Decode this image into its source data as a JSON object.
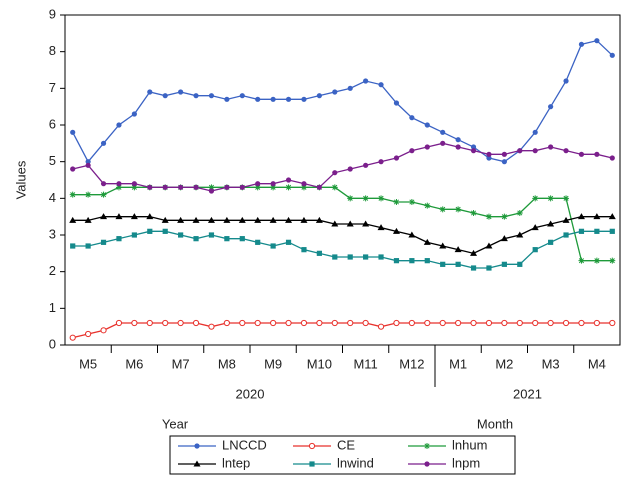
{
  "chart_data": {
    "type": "line",
    "ylabel": "Values",
    "categories": [
      null,
      "M5",
      null,
      null,
      "M6",
      null,
      null,
      "M7",
      null,
      null,
      "M8",
      null,
      null,
      "M9",
      null,
      null,
      "M10",
      null,
      null,
      "M11",
      null,
      null,
      "M12",
      null,
      null,
      "M1",
      null,
      null,
      "M2",
      null,
      null,
      "M3",
      null,
      null,
      "M4",
      null
    ],
    "year_labels": [
      "2020",
      "2021"
    ],
    "xlabels": [
      "Year",
      "Month"
    ],
    "ylim": [
      0,
      9
    ],
    "yticks": [
      0,
      1,
      2,
      3,
      4,
      5,
      6,
      7,
      8,
      9
    ],
    "series": [
      {
        "name": "LNCCD",
        "color": "#3b63c4",
        "marker": "circle",
        "values": [
          5.8,
          5.0,
          5.5,
          6.0,
          6.3,
          6.9,
          6.8,
          6.9,
          6.8,
          6.8,
          6.7,
          6.8,
          6.7,
          6.7,
          6.7,
          6.7,
          6.8,
          6.9,
          7.0,
          7.2,
          7.1,
          6.6,
          6.2,
          6.0,
          5.8,
          5.6,
          5.4,
          5.1,
          5.0,
          5.3,
          5.8,
          6.5,
          7.2,
          8.2,
          8.3,
          7.9
        ]
      },
      {
        "name": "CE",
        "color": "#e8312c",
        "marker": "open-circle",
        "values": [
          0.2,
          0.3,
          0.4,
          0.6,
          0.6,
          0.6,
          0.6,
          0.6,
          0.6,
          0.5,
          0.6,
          0.6,
          0.6,
          0.6,
          0.6,
          0.6,
          0.6,
          0.6,
          0.6,
          0.6,
          0.5,
          0.6,
          0.6,
          0.6,
          0.6,
          0.6,
          0.6,
          0.6,
          0.6,
          0.6,
          0.6,
          0.6,
          0.6,
          0.6,
          0.6,
          0.6
        ]
      },
      {
        "name": "lnhum",
        "color": "#1e9a3a",
        "marker": "star",
        "values": [
          4.1,
          4.1,
          4.1,
          4.3,
          4.3,
          4.3,
          4.3,
          4.3,
          4.3,
          4.3,
          4.3,
          4.3,
          4.3,
          4.3,
          4.3,
          4.3,
          4.3,
          4.3,
          4.0,
          4.0,
          4.0,
          3.9,
          3.9,
          3.8,
          3.7,
          3.7,
          3.6,
          3.5,
          3.5,
          3.6,
          4.0,
          4.0,
          4.0,
          2.3,
          2.3,
          2.3
        ]
      },
      {
        "name": "lntep",
        "color": "#000000",
        "marker": "triangle",
        "values": [
          3.4,
          3.4,
          3.5,
          3.5,
          3.5,
          3.5,
          3.4,
          3.4,
          3.4,
          3.4,
          3.4,
          3.4,
          3.4,
          3.4,
          3.4,
          3.4,
          3.4,
          3.3,
          3.3,
          3.3,
          3.2,
          3.1,
          3.0,
          2.8,
          2.7,
          2.6,
          2.5,
          2.7,
          2.9,
          3.0,
          3.2,
          3.3,
          3.4,
          3.5,
          3.5,
          3.5
        ]
      },
      {
        "name": "lnwind",
        "color": "#158a8c",
        "marker": "square",
        "values": [
          2.7,
          2.7,
          2.8,
          2.9,
          3.0,
          3.1,
          3.1,
          3.0,
          2.9,
          3.0,
          2.9,
          2.9,
          2.8,
          2.7,
          2.8,
          2.6,
          2.5,
          2.4,
          2.4,
          2.4,
          2.4,
          2.3,
          2.3,
          2.3,
          2.2,
          2.2,
          2.1,
          2.1,
          2.2,
          2.2,
          2.6,
          2.8,
          3.0,
          3.1,
          3.1,
          3.1
        ]
      },
      {
        "name": "lnpm",
        "color": "#7b1f8c",
        "marker": "dot",
        "values": [
          4.8,
          4.9,
          4.4,
          4.4,
          4.4,
          4.3,
          4.3,
          4.3,
          4.3,
          4.2,
          4.3,
          4.3,
          4.4,
          4.4,
          4.5,
          4.4,
          4.3,
          4.7,
          4.8,
          4.9,
          5.0,
          5.1,
          5.3,
          5.4,
          5.5,
          5.4,
          5.3,
          5.2,
          5.2,
          5.3,
          5.3,
          5.4,
          5.3,
          5.2,
          5.2,
          5.1
        ]
      }
    ],
    "legend": "bottom"
  }
}
